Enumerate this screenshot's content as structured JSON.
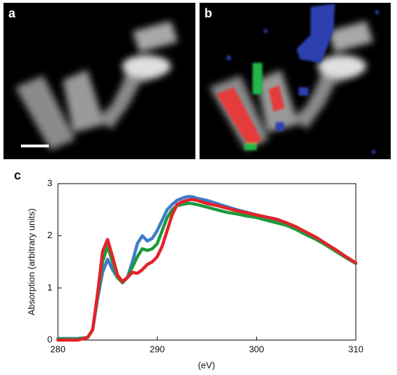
{
  "panel_labels": [
    "a",
    "b",
    "c"
  ],
  "chart_data": {
    "type": "line",
    "x_label": "(eV)",
    "y_label": "Absorption (arbitrary units)",
    "x": [
      280,
      281,
      282,
      283,
      283.5,
      284,
      284.5,
      285,
      285.5,
      286,
      286.5,
      287,
      287.5,
      288,
      288.5,
      289,
      289.5,
      290,
      290.5,
      291,
      291.5,
      292,
      292.5,
      293,
      293.5,
      294,
      295,
      296,
      297,
      298,
      299,
      300,
      301,
      302,
      303,
      304,
      305,
      306,
      307,
      308,
      309,
      310
    ],
    "series": [
      {
        "color": "#3d7cc9",
        "values": [
          0.03,
          0.03,
          0.03,
          0.05,
          0.2,
          0.8,
          1.3,
          1.55,
          1.35,
          1.2,
          1.1,
          1.2,
          1.5,
          1.85,
          2.0,
          1.9,
          1.95,
          2.1,
          2.3,
          2.5,
          2.6,
          2.68,
          2.72,
          2.75,
          2.75,
          2.72,
          2.68,
          2.62,
          2.56,
          2.5,
          2.45,
          2.4,
          2.35,
          2.3,
          2.23,
          2.15,
          2.05,
          1.95,
          1.84,
          1.72,
          1.6,
          1.48
        ]
      },
      {
        "color": "#1b9a3c",
        "values": [
          0.02,
          0.02,
          0.02,
          0.05,
          0.2,
          0.85,
          1.5,
          1.8,
          1.5,
          1.2,
          1.1,
          1.2,
          1.4,
          1.6,
          1.75,
          1.72,
          1.75,
          1.85,
          2.1,
          2.35,
          2.5,
          2.58,
          2.6,
          2.62,
          2.62,
          2.6,
          2.55,
          2.5,
          2.45,
          2.42,
          2.38,
          2.35,
          2.3,
          2.25,
          2.2,
          2.12,
          2.02,
          1.93,
          1.82,
          1.7,
          1.58,
          1.47
        ]
      },
      {
        "color": "#e3222a",
        "values": [
          0,
          0,
          0,
          0.05,
          0.2,
          0.9,
          1.7,
          1.93,
          1.6,
          1.25,
          1.12,
          1.2,
          1.3,
          1.28,
          1.35,
          1.45,
          1.5,
          1.6,
          1.8,
          2.1,
          2.4,
          2.6,
          2.65,
          2.68,
          2.7,
          2.68,
          2.62,
          2.58,
          2.53,
          2.48,
          2.44,
          2.4,
          2.36,
          2.32,
          2.25,
          2.17,
          2.07,
          1.97,
          1.85,
          1.73,
          1.6,
          1.48
        ]
      }
    ],
    "xlim": [
      280,
      310
    ],
    "xticks": [
      280,
      290,
      300,
      310
    ],
    "ylim": [
      0,
      3
    ],
    "yticks": [
      0,
      1,
      2,
      3
    ]
  }
}
